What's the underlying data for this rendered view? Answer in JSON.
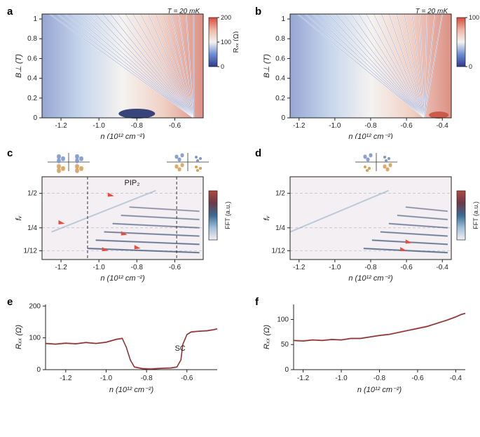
{
  "panel_a": {
    "label": "a",
    "type": "heatmap",
    "temperature": "T = 20 mK",
    "x_label": "n (10¹² cm⁻²)",
    "y_label": "B⊥ (T)",
    "cbar_label": "Rₓₓ (Ω)",
    "xlim": [
      -1.3,
      -0.45
    ],
    "ylim": [
      0,
      1.05
    ],
    "xticks": [
      -1.2,
      -1.0,
      -0.8,
      -0.6
    ],
    "yticks": [
      0,
      0.2,
      0.4,
      0.6,
      0.8,
      1.0
    ],
    "cbar_ticks": [
      0,
      100,
      200
    ],
    "cmap_stops": [
      "#2e3a8c",
      "#6c8dd5",
      "#f5f2ef",
      "#f0b6a4",
      "#d84a3b"
    ],
    "background_color": "#ffffff"
  },
  "panel_b": {
    "label": "b",
    "type": "heatmap",
    "temperature": "T = 20 mK",
    "x_label": "n (10¹² cm⁻²)",
    "y_label": "B⊥ (T)",
    "cbar_label": "Rₓₓ (Ω)",
    "xlim": [
      -1.25,
      -0.35
    ],
    "ylim": [
      0,
      1.05
    ],
    "xticks": [
      -1.2,
      -1.0,
      -0.8,
      -0.6,
      -0.4
    ],
    "yticks": [
      0,
      0.2,
      0.4,
      0.6,
      0.8,
      1.0
    ],
    "cbar_ticks": [
      0,
      100
    ],
    "cmap_stops": [
      "#2e3a8c",
      "#6c8dd5",
      "#f5f2ef",
      "#f0b6a4",
      "#d84a3b"
    ],
    "background_color": "#ffffff"
  },
  "panel_c": {
    "label": "c",
    "type": "heatmap",
    "x_label": "n (10¹² cm⁻²)",
    "y_label": "fᵥ",
    "cbar_label": "FFT (a.u.)",
    "pip_label": "PIP₂",
    "xlim": [
      -1.3,
      -0.45
    ],
    "xticks": [
      -1.2,
      -1.0,
      -0.8,
      -0.6
    ],
    "ytick_labels": [
      "1/12",
      "1/4",
      "1/2"
    ],
    "ytick_vals": [
      0.0833,
      0.25,
      0.5
    ],
    "ylim": [
      0.02,
      0.62
    ],
    "vlines": [
      -1.06,
      -0.59
    ],
    "arrow_color": "#e94b3c",
    "arrows": [
      [
        -1.18,
        0.28
      ],
      [
        -0.92,
        0.48
      ],
      [
        -0.95,
        0.085
      ],
      [
        -0.78,
        0.1
      ],
      [
        -0.85,
        0.2
      ]
    ],
    "cmap_stops": [
      "#f4eff2",
      "#9fbfd8",
      "#3a6b93",
      "#6b3a4a",
      "#b04a3c"
    ],
    "background_color": "#f4eff2",
    "icon_blue": "#7f97c9",
    "icon_orange": "#d7a05a"
  },
  "panel_d": {
    "label": "d",
    "type": "heatmap",
    "x_label": "n (10¹² cm⁻²)",
    "y_label": "fᵥ",
    "cbar_label": "FFT (a.u.)",
    "xlim": [
      -1.25,
      -0.35
    ],
    "xticks": [
      -1.2,
      -1.0,
      -0.8,
      -0.6,
      -0.4
    ],
    "ytick_labels": [
      "1/12",
      "1/4",
      "1/2"
    ],
    "ytick_vals": [
      0.0833,
      0.25,
      0.5
    ],
    "ylim": [
      0.02,
      0.62
    ],
    "arrow_color": "#e94b3c",
    "arrows": [
      [
        -0.6,
        0.085
      ],
      [
        -0.57,
        0.14
      ]
    ],
    "cmap_stops": [
      "#f4eff2",
      "#9fbfd8",
      "#3a6b93",
      "#6b3a4a",
      "#b04a3c"
    ],
    "background_color": "#f4eff2",
    "icon_blue": "#7f97c9",
    "icon_orange": "#d7a05a"
  },
  "panel_e": {
    "label": "e",
    "type": "line",
    "x_label": "n (10¹² cm⁻²)",
    "y_label": "Rₓₓ (Ω)",
    "sc_label": "SC",
    "xlim": [
      -1.3,
      -0.45
    ],
    "ylim": [
      0,
      205
    ],
    "xticks": [
      -1.2,
      -1.0,
      -0.8,
      -0.6
    ],
    "yticks": [
      0,
      100,
      200
    ],
    "line_color": "#8c2e2e",
    "line_width": 1.5,
    "data_x": [
      -1.3,
      -1.25,
      -1.2,
      -1.15,
      -1.1,
      -1.05,
      -1.0,
      -0.95,
      -0.92,
      -0.9,
      -0.88,
      -0.86,
      -0.82,
      -0.78,
      -0.72,
      -0.68,
      -0.65,
      -0.63,
      -0.62,
      -0.6,
      -0.58,
      -0.55,
      -0.5,
      -0.47,
      -0.45
    ],
    "data_y": [
      82,
      80,
      83,
      81,
      85,
      82,
      86,
      95,
      98,
      70,
      30,
      8,
      3,
      2,
      4,
      5,
      8,
      30,
      80,
      110,
      118,
      120,
      122,
      125,
      128
    ]
  },
  "panel_f": {
    "label": "f",
    "type": "line",
    "x_label": "n (10¹² cm⁻²)",
    "y_label": "Rₓₓ (Ω)",
    "xlim": [
      -1.25,
      -0.35
    ],
    "ylim": [
      0,
      130
    ],
    "xticks": [
      -1.2,
      -1.0,
      -0.8,
      -0.6,
      -0.4
    ],
    "yticks": [
      0,
      50,
      100
    ],
    "line_color": "#8c2e2e",
    "line_width": 1.5,
    "data_x": [
      -1.25,
      -1.2,
      -1.15,
      -1.1,
      -1.05,
      -1.0,
      -0.95,
      -0.9,
      -0.85,
      -0.8,
      -0.75,
      -0.7,
      -0.65,
      -0.6,
      -0.55,
      -0.5,
      -0.45,
      -0.4,
      -0.37,
      -0.35
    ],
    "data_y": [
      58,
      57,
      59,
      58,
      60,
      59,
      62,
      62,
      65,
      68,
      70,
      74,
      78,
      82,
      86,
      92,
      98,
      105,
      110,
      112
    ]
  },
  "global": {
    "tick_fontsize": 10,
    "label_fontsize": 11
  }
}
